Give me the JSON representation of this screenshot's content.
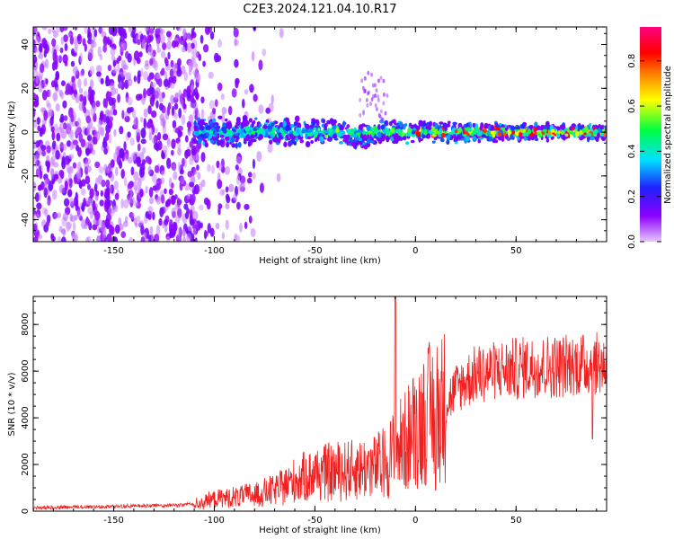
{
  "figure": {
    "title": "C2E3.2024.121.04.10.R17"
  },
  "colors": {
    "snr_line": "#ee2020",
    "frame": "#000000"
  },
  "chart_data": [
    {
      "type": "heatmap",
      "name": "spectrogram",
      "xlabel": "Height of straight line (km)",
      "ylabel": "Frequency (Hz)",
      "xlim": [
        -190,
        95
      ],
      "ylim": [
        -50,
        48
      ],
      "xticks": [
        -150,
        -100,
        -50,
        0,
        50
      ],
      "yticks": [
        -40,
        -20,
        0,
        20,
        40
      ],
      "colorbar": {
        "label": "Normalized spectral amplitude",
        "range": [
          0,
          0.95
        ],
        "ticks": [
          0.0,
          0.2,
          0.4,
          0.6,
          0.8
        ],
        "colormap": [
          "#e6c8ff",
          "#8c00ff",
          "#2020ff",
          "#00e0ff",
          "#00ff40",
          "#ffff00",
          "#ff8000",
          "#ff0000",
          "#ff0080"
        ]
      },
      "description_data": {
        "noise_region_x": [
          -190,
          -108
        ],
        "signal_band_x": [
          -110,
          95
        ],
        "signal_band_center_hz": 0,
        "signal_band_halfwidth_hz": [
          6,
          3
        ]
      }
    },
    {
      "type": "line",
      "name": "snr",
      "xlabel": "Height of straight line (km)",
      "ylabel": "SNR (10 * v/v)",
      "xlim": [
        -190,
        95
      ],
      "ylim": [
        0,
        9200
      ],
      "xticks": [
        -150,
        -100,
        -50,
        0,
        50
      ],
      "yticks": [
        0,
        2000,
        4000,
        6000,
        8000
      ],
      "trend": {
        "x": [
          -190,
          -150,
          -120,
          -110,
          -100,
          -90,
          -80,
          -70,
          -60,
          -50,
          -40,
          -30,
          -20,
          -15,
          -10,
          -5,
          0,
          5,
          10,
          15,
          20,
          30,
          40,
          50,
          60,
          70,
          80,
          90,
          95
        ],
        "y": [
          150,
          200,
          250,
          300,
          500,
          600,
          700,
          900,
          1300,
          1600,
          1700,
          1800,
          1900,
          2100,
          2600,
          3000,
          3600,
          4100,
          4300,
          4600,
          5200,
          5900,
          6000,
          6100,
          6200,
          6200,
          6300,
          6300,
          6300
        ]
      },
      "spikes": [
        {
          "x": -10,
          "y": 9200
        },
        {
          "x": 10,
          "y": 900
        },
        {
          "x": 88,
          "y": 3100
        }
      ]
    }
  ]
}
